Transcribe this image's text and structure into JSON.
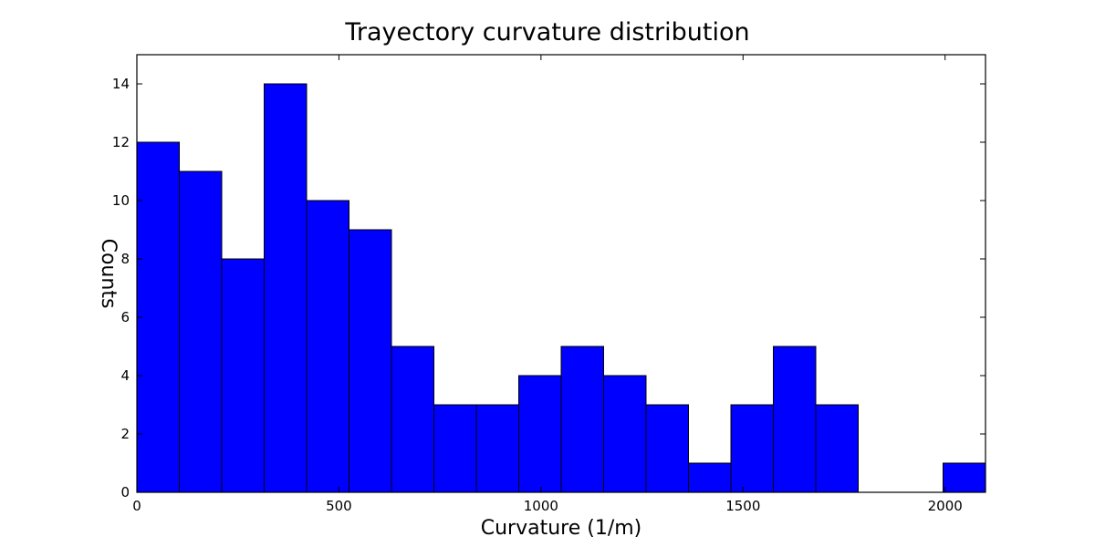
{
  "chart_data": {
    "type": "bar",
    "title": "Trayectory curvature distribution",
    "xlabel": "Curvature (1/m)",
    "ylabel": "Counts",
    "xlim": [
      0,
      2100
    ],
    "ylim": [
      0,
      15
    ],
    "xticks": [
      0,
      500,
      1000,
      1500,
      2000
    ],
    "yticks": [
      0,
      2,
      4,
      6,
      8,
      10,
      12,
      14
    ],
    "grid": false,
    "bar_color": "#0000ff",
    "edge_color": "#000000",
    "bins": [
      {
        "x0": 0,
        "x1": 105,
        "count": 12
      },
      {
        "x0": 105,
        "x1": 210,
        "count": 11
      },
      {
        "x0": 210,
        "x1": 315,
        "count": 8
      },
      {
        "x0": 315,
        "x1": 420,
        "count": 14
      },
      {
        "x0": 420,
        "x1": 525,
        "count": 10
      },
      {
        "x0": 525,
        "x1": 630,
        "count": 9
      },
      {
        "x0": 630,
        "x1": 735,
        "count": 5
      },
      {
        "x0": 735,
        "x1": 840,
        "count": 3
      },
      {
        "x0": 840,
        "x1": 945,
        "count": 3
      },
      {
        "x0": 945,
        "x1": 1050,
        "count": 4
      },
      {
        "x0": 1050,
        "x1": 1155,
        "count": 5
      },
      {
        "x0": 1155,
        "x1": 1260,
        "count": 4
      },
      {
        "x0": 1260,
        "x1": 1365,
        "count": 3
      },
      {
        "x0": 1365,
        "x1": 1470,
        "count": 1
      },
      {
        "x0": 1470,
        "x1": 1575,
        "count": 3
      },
      {
        "x0": 1575,
        "x1": 1680,
        "count": 5
      },
      {
        "x0": 1680,
        "x1": 1785,
        "count": 3
      },
      {
        "x0": 1785,
        "x1": 1890,
        "count": 0
      },
      {
        "x0": 1890,
        "x1": 1995,
        "count": 0
      },
      {
        "x0": 1995,
        "x1": 2100,
        "count": 1
      }
    ]
  }
}
